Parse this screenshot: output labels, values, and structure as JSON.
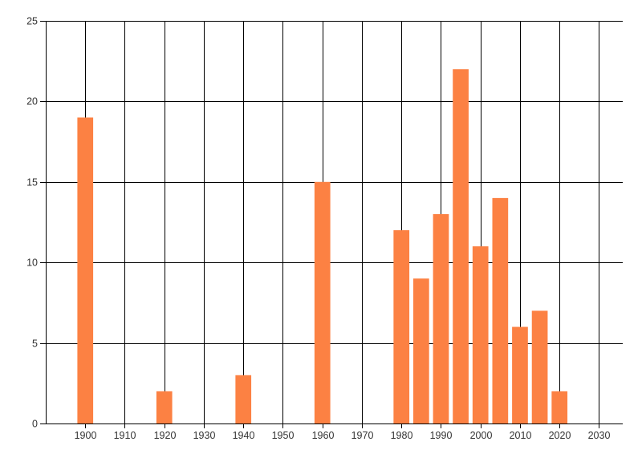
{
  "chart_data": {
    "type": "bar",
    "title": "",
    "xlabel": "",
    "ylabel": "",
    "x": [
      1900,
      1920,
      1940,
      1960,
      1980,
      1985,
      1990,
      1995,
      2000,
      2005,
      2010,
      2015,
      2020
    ],
    "values": [
      19,
      2,
      3,
      15,
      12,
      9,
      13,
      22,
      11,
      14,
      6,
      7,
      2
    ],
    "x_ticks": [
      1900,
      1910,
      1920,
      1930,
      1940,
      1950,
      1960,
      1970,
      1980,
      1990,
      2000,
      2010,
      2020,
      2030
    ],
    "y_ticks": [
      0,
      5,
      10,
      15,
      20,
      25
    ],
    "xlim": [
      1890,
      2036
    ],
    "ylim": [
      0,
      25
    ],
    "grid": true,
    "legend": "none",
    "bar_width_years": 4,
    "colors": {
      "bar": "#fc8143",
      "grid": "#000000",
      "axis": "#000000",
      "tick_label": "#333333",
      "background": "#ffffff"
    }
  }
}
